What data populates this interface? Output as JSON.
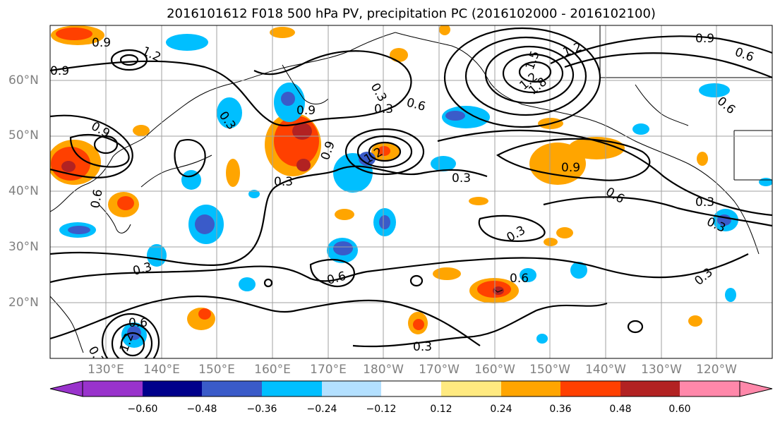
{
  "title": "2016101612 F018 500 hPa PV, precipitation PC (2016102000 - 2016102100)",
  "lat_labels": [
    "60°N",
    "50°N",
    "40°N",
    "30°N",
    "20°N"
  ],
  "lon_labels": [
    "130°E",
    "140°E",
    "150°E",
    "160°E",
    "170°E",
    "180°W",
    "170°W",
    "160°W",
    "150°W",
    "140°W",
    "130°W",
    "120°W"
  ],
  "colorbar": {
    "colors": [
      "#9933cc",
      "#00008b",
      "#3a5bc9",
      "#00bfff",
      "#b3e0ff",
      "#ffffff",
      "#ffea80",
      "#ffa500",
      "#ff4000",
      "#b22222",
      "#ff88aa"
    ],
    "labels": [
      "−0.60",
      "−0.48",
      "−0.36",
      "−0.24",
      "−0.12",
      "0.12",
      "0.24",
      "0.36",
      "0.48",
      "0.60"
    ]
  },
  "contour_labels": [
    "0.9",
    "1.2",
    "0.9",
    "0.9",
    "0.3",
    "0.9",
    "0.3",
    "0.3",
    "0.6",
    "0.6",
    "1.2",
    "1.5",
    "1.8",
    "1.2",
    "0.9",
    "0.6",
    "0.6",
    "0.9",
    "0.6",
    "0.3",
    "0.3",
    "0.3",
    "0.3",
    "0.3",
    "0.6",
    "1.2",
    "0.9",
    "0.3",
    "0.6",
    "0.3",
    "0.3",
    "0.6",
    "0.3",
    "1.2"
  ]
}
